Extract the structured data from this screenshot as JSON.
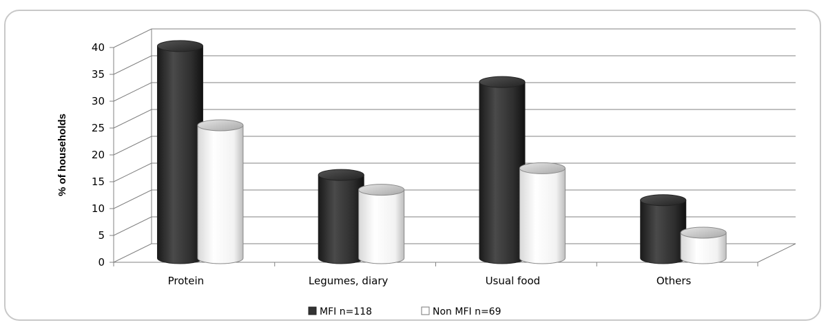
{
  "chart_data": {
    "type": "bar",
    "title": "",
    "xlabel": "",
    "ylabel": "% of households",
    "ylim": [
      0,
      40
    ],
    "yticks": [
      0,
      5,
      10,
      15,
      20,
      25,
      30,
      35,
      40
    ],
    "categories": [
      "Protein",
      "Legumes, diary",
      "Usual food",
      "Others"
    ],
    "series": [
      {
        "name": "MFI n=118",
        "values": [
          39.5,
          15.5,
          32.8,
          10.8
        ],
        "color": "#333333"
      },
      {
        "name": "Non MFI n=69",
        "values": [
          25,
          13,
          17,
          5
        ],
        "color": "#ffffff"
      }
    ],
    "grid": true,
    "legend": "bottom"
  }
}
